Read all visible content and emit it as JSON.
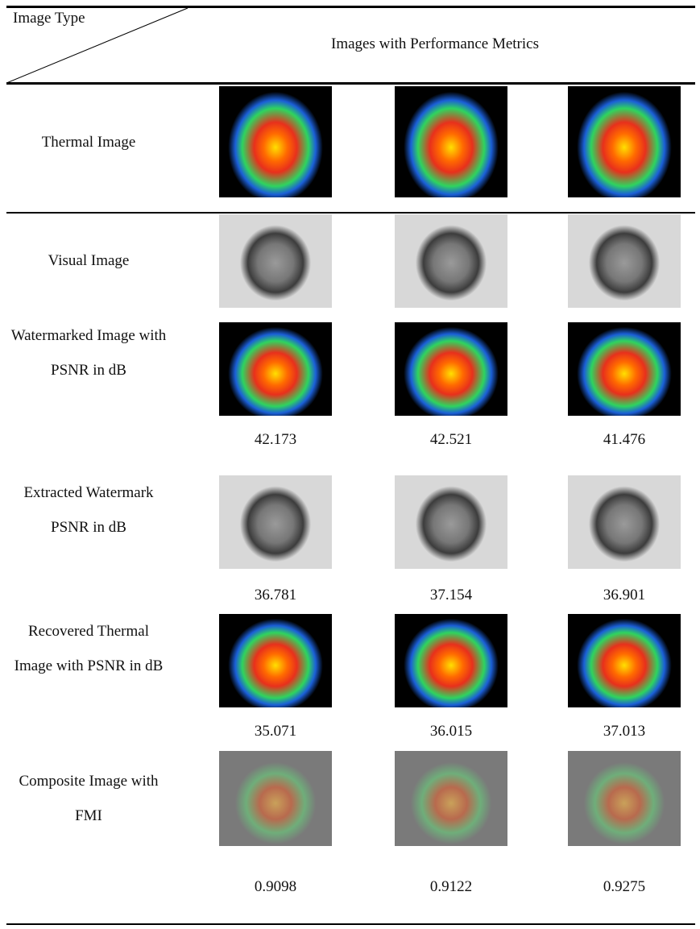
{
  "header": {
    "corner_label": "Image Type",
    "title": "Images with Performance Metrics"
  },
  "table": {
    "rows": [
      {
        "label": "Thermal Image",
        "kind": "thermal",
        "values": null
      },
      {
        "label": "Visual Image",
        "kind": "visual",
        "values": null
      },
      {
        "label": "Watermarked Image with PSNR in dB",
        "kind": "thermal",
        "values": [
          42.173,
          42.521,
          41.476
        ]
      },
      {
        "label": "Extracted Watermark PSNR in dB",
        "kind": "visual",
        "values": [
          36.781,
          37.154,
          36.901
        ]
      },
      {
        "label": "Recovered Thermal Image with PSNR in dB",
        "kind": "thermal",
        "values": [
          35.071,
          36.015,
          37.013
        ]
      },
      {
        "label": "Composite Image with FMI",
        "kind": "composite",
        "values": [
          0.9098,
          0.9122,
          0.9275
        ]
      }
    ]
  }
}
